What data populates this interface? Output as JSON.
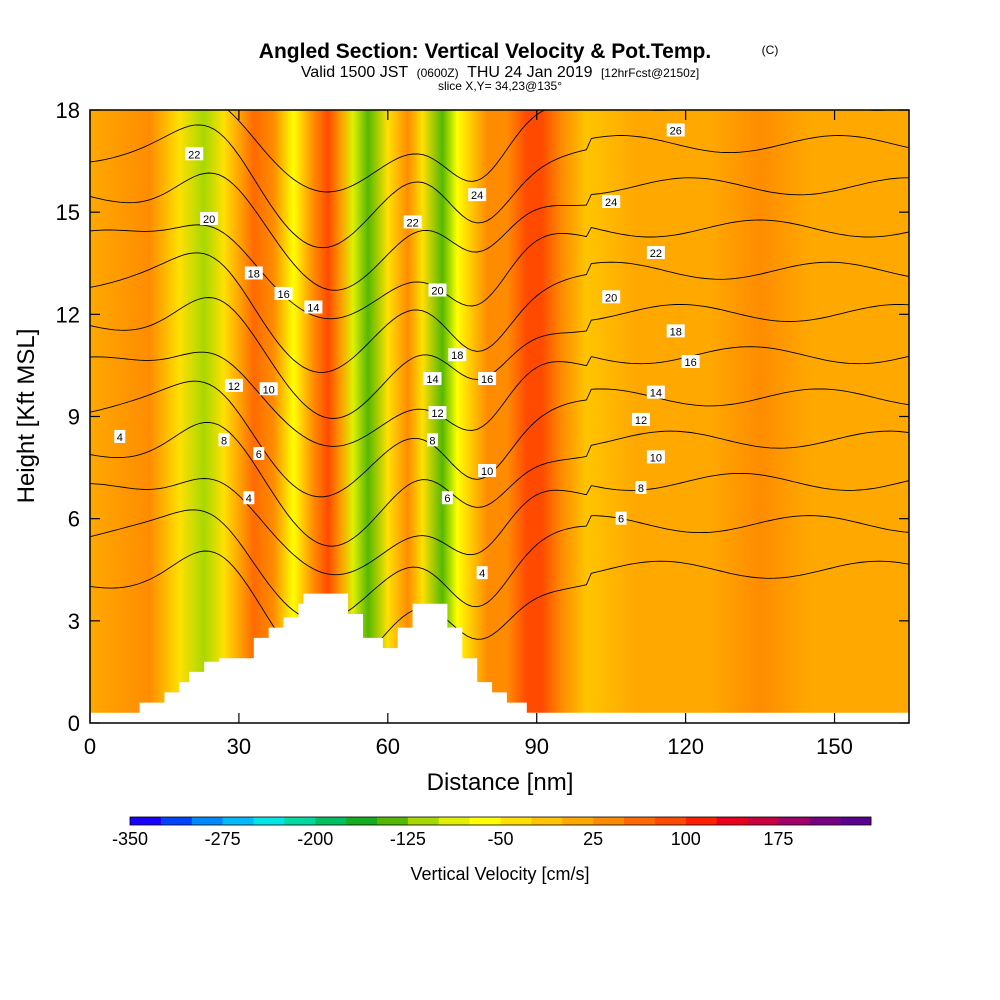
{
  "chart_data": {
    "type": "heatmap",
    "title": "Angled Section: Vertical Velocity & Pot.Temp.",
    "title_unit": "(C)",
    "subtitle": {
      "prefix": "Valid 1500 JST",
      "utc": "(0600Z)",
      "date": "THU 24 Jan 2019",
      "forecast": "[12hrFcst@2150z]"
    },
    "slice_label": "slice X,Y= 34,23@135°",
    "xlabel": "Distance [nm]",
    "ylabel": "Height [Kft MSL]",
    "xlim": [
      0,
      165
    ],
    "ylim": [
      0,
      18
    ],
    "x_ticks": [
      "0",
      "30",
      "60",
      "90",
      "120",
      "150"
    ],
    "x_tick_values": [
      0,
      30,
      60,
      90,
      120,
      150
    ],
    "y_ticks": [
      "0",
      "3",
      "6",
      "9",
      "12",
      "15",
      "18"
    ],
    "y_tick_values": [
      0,
      3,
      6,
      9,
      12,
      15,
      18
    ],
    "colorbar": {
      "label": "Vertical Velocity [cm/s]",
      "tick_labels": [
        "-350",
        "-275",
        "-200",
        "-125",
        "-50",
        "25",
        "100",
        "175"
      ],
      "tick_values": [
        -350,
        -275,
        -200,
        -125,
        -50,
        25,
        100,
        175
      ],
      "colors": [
        "#1a00ff",
        "#0044ff",
        "#0088ff",
        "#00bbff",
        "#00e6e6",
        "#00d9a0",
        "#00c060",
        "#16ad20",
        "#55b800",
        "#a8d800",
        "#e0f000",
        "#ffff00",
        "#ffe000",
        "#ffc400",
        "#ffa800",
        "#ff8c00",
        "#ff6a00",
        "#ff4a00",
        "#ff2000",
        "#e8001c",
        "#c80040",
        "#a0006a",
        "#780080",
        "#5a0090"
      ]
    },
    "velocity_bands": [
      {
        "x": 0,
        "value": 10
      },
      {
        "x": 12,
        "value": 25
      },
      {
        "x": 18,
        "value": -40
      },
      {
        "x": 23,
        "value": -110
      },
      {
        "x": 27,
        "value": -45
      },
      {
        "x": 33,
        "value": 70
      },
      {
        "x": 37,
        "value": 40
      },
      {
        "x": 41,
        "value": -60
      },
      {
        "x": 45,
        "value": 40
      },
      {
        "x": 48,
        "value": 75
      },
      {
        "x": 50,
        "value": 35
      },
      {
        "x": 53,
        "value": -90
      },
      {
        "x": 56,
        "value": -140
      },
      {
        "x": 60,
        "value": -40
      },
      {
        "x": 64,
        "value": 30
      },
      {
        "x": 67,
        "value": -40
      },
      {
        "x": 71,
        "value": -140
      },
      {
        "x": 74,
        "value": -60
      },
      {
        "x": 77,
        "value": -20
      },
      {
        "x": 80,
        "value": 25
      },
      {
        "x": 84,
        "value": 40
      },
      {
        "x": 88,
        "value": 80
      },
      {
        "x": 91,
        "value": 95
      },
      {
        "x": 95,
        "value": 40
      },
      {
        "x": 100,
        "value": -10
      },
      {
        "x": 110,
        "value": 10
      },
      {
        "x": 125,
        "value": 15
      },
      {
        "x": 135,
        "value": 25
      },
      {
        "x": 145,
        "value": 20
      },
      {
        "x": 165,
        "value": 10
      }
    ],
    "theta_contours": [
      {
        "label": "4",
        "value": 4
      },
      {
        "label": "6",
        "value": 6
      },
      {
        "label": "8",
        "value": 8
      },
      {
        "label": "10",
        "value": 10
      },
      {
        "label": "12",
        "value": 12
      },
      {
        "label": "14",
        "value": 14
      },
      {
        "label": "16",
        "value": 16
      },
      {
        "label": "18",
        "value": 18
      },
      {
        "label": "20",
        "value": 20
      },
      {
        "label": "22",
        "value": 22
      },
      {
        "label": "24",
        "value": 24
      },
      {
        "label": "26",
        "value": 26
      }
    ],
    "contour_labels": [
      {
        "text": "4",
        "x": 6,
        "y": 8.4
      },
      {
        "text": "12",
        "x": 29,
        "y": 9.9
      },
      {
        "text": "10",
        "x": 36,
        "y": 9.8
      },
      {
        "text": "8",
        "x": 27,
        "y": 8.3
      },
      {
        "text": "6",
        "x": 34,
        "y": 7.9
      },
      {
        "text": "4",
        "x": 32,
        "y": 6.6
      },
      {
        "text": "18",
        "x": 33,
        "y": 13.2
      },
      {
        "text": "16",
        "x": 39,
        "y": 12.6
      },
      {
        "text": "14",
        "x": 45,
        "y": 12.2
      },
      {
        "text": "20",
        "x": 24,
        "y": 14.8
      },
      {
        "text": "22",
        "x": 21,
        "y": 16.7
      },
      {
        "text": "22",
        "x": 65,
        "y": 14.7
      },
      {
        "text": "24",
        "x": 78,
        "y": 15.5
      },
      {
        "text": "20",
        "x": 70,
        "y": 12.7
      },
      {
        "text": "18",
        "x": 74,
        "y": 10.8
      },
      {
        "text": "16",
        "x": 80,
        "y": 10.1
      },
      {
        "text": "14",
        "x": 69,
        "y": 10.1
      },
      {
        "text": "12",
        "x": 70,
        "y": 9.1
      },
      {
        "text": "8",
        "x": 69,
        "y": 8.3
      },
      {
        "text": "10",
        "x": 80,
        "y": 7.4
      },
      {
        "text": "6",
        "x": 72,
        "y": 6.6
      },
      {
        "text": "4",
        "x": 79,
        "y": 4.4
      },
      {
        "text": "26",
        "x": 118,
        "y": 17.4
      },
      {
        "text": "24",
        "x": 105,
        "y": 15.3
      },
      {
        "text": "22",
        "x": 114,
        "y": 13.8
      },
      {
        "text": "20",
        "x": 105,
        "y": 12.5
      },
      {
        "text": "18",
        "x": 118,
        "y": 11.5
      },
      {
        "text": "16",
        "x": 121,
        "y": 10.6
      },
      {
        "text": "14",
        "x": 114,
        "y": 9.7
      },
      {
        "text": "12",
        "x": 111,
        "y": 8.9
      },
      {
        "text": "10",
        "x": 114,
        "y": 7.8
      },
      {
        "text": "8",
        "x": 111,
        "y": 6.9
      },
      {
        "text": "6",
        "x": 107,
        "y": 6.0
      }
    ],
    "terrain": [
      [
        0,
        0.3
      ],
      [
        10,
        0.3
      ],
      [
        10,
        0.6
      ],
      [
        15,
        0.6
      ],
      [
        15,
        0.9
      ],
      [
        18,
        0.9
      ],
      [
        18,
        1.2
      ],
      [
        20,
        1.2
      ],
      [
        20,
        1.5
      ],
      [
        23,
        1.5
      ],
      [
        23,
        1.8
      ],
      [
        26,
        1.8
      ],
      [
        26,
        1.9
      ],
      [
        33,
        1.9
      ],
      [
        33,
        2.5
      ],
      [
        36,
        2.5
      ],
      [
        36,
        2.8
      ],
      [
        39,
        2.8
      ],
      [
        39,
        3.1
      ],
      [
        42,
        3.1
      ],
      [
        42,
        3.5
      ],
      [
        43,
        3.5
      ],
      [
        43,
        3.8
      ],
      [
        52,
        3.8
      ],
      [
        52,
        3.2
      ],
      [
        55,
        3.2
      ],
      [
        55,
        2.5
      ],
      [
        59,
        2.5
      ],
      [
        59,
        2.2
      ],
      [
        62,
        2.2
      ],
      [
        62,
        2.8
      ],
      [
        65,
        2.8
      ],
      [
        65,
        3.5
      ],
      [
        72,
        3.5
      ],
      [
        72,
        2.8
      ],
      [
        75,
        2.8
      ],
      [
        75,
        1.9
      ],
      [
        78,
        1.9
      ],
      [
        78,
        1.2
      ],
      [
        81,
        1.2
      ],
      [
        81,
        0.9
      ],
      [
        84,
        0.9
      ],
      [
        84,
        0.6
      ],
      [
        88,
        0.6
      ],
      [
        88,
        0.3
      ],
      [
        165,
        0.3
      ]
    ]
  }
}
